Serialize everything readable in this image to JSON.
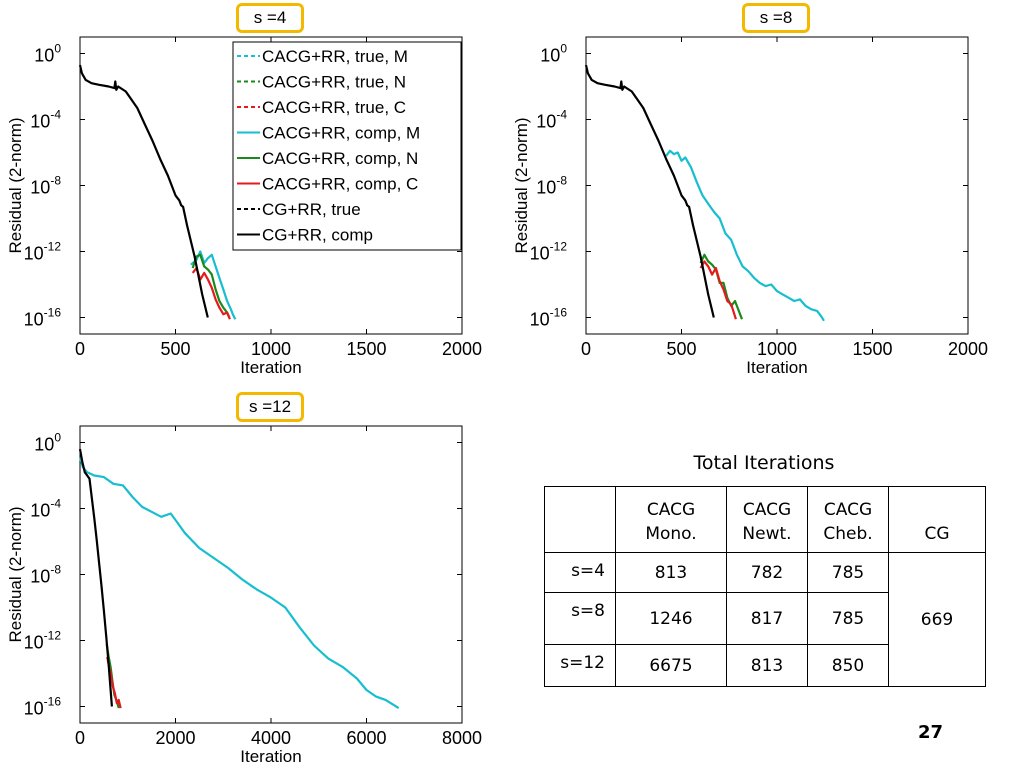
{
  "page_number": "27",
  "colors": {
    "badge_border": "#f5b800",
    "cyan": "#17becf",
    "green": "#1a8a1a",
    "red": "#e41a1c",
    "black": "#000000"
  },
  "chart_data": [
    {
      "type": "line",
      "badge": "s =4",
      "xlabel": "Iteration",
      "ylabel": "Residual (2-norm)",
      "xlim": [
        0,
        2000
      ],
      "xticks": [
        "0",
        "500",
        "1000",
        "1500",
        "2000"
      ],
      "ylim_log10": [
        -17,
        1
      ],
      "yticks": [
        {
          "base": "10",
          "exp": "0"
        },
        {
          "base": "10",
          "exp": "-4"
        },
        {
          "base": "10",
          "exp": "-8"
        },
        {
          "base": "10",
          "exp": "-12"
        },
        {
          "base": "10",
          "exp": "-16"
        }
      ],
      "legend": {
        "position": "top-right",
        "entries": [
          {
            "label": "CACG+RR, true, M",
            "color": "#17becf",
            "dash": true
          },
          {
            "label": "CACG+RR, true, N",
            "color": "#1a8a1a",
            "dash": true
          },
          {
            "label": "CACG+RR, true, C",
            "color": "#e41a1c",
            "dash": true
          },
          {
            "label": "CACG+RR, comp, M",
            "color": "#17becf",
            "dash": false
          },
          {
            "label": "CACG+RR, comp, N",
            "color": "#1a8a1a",
            "dash": false
          },
          {
            "label": "CACG+RR, comp, C",
            "color": "#e41a1c",
            "dash": false
          },
          {
            "label": "CG+RR, true",
            "color": "#000000",
            "dash": true
          },
          {
            "label": "CG+RR, comp",
            "color": "#000000",
            "dash": false
          }
        ]
      },
      "series": [
        {
          "color": "#17becf",
          "x": [
            580,
            610,
            630,
            650,
            670,
            690,
            710,
            730,
            750,
            770,
            790,
            800,
            813
          ],
          "y": [
            -12.8,
            -12.5,
            -12.0,
            -12.7,
            -12.4,
            -12.2,
            -12.9,
            -13.6,
            -14.3,
            -15.0,
            -15.5,
            -15.8,
            -16.1
          ]
        },
        {
          "color": "#1a8a1a",
          "x": [
            590,
            610,
            630,
            650,
            670,
            690,
            710,
            730,
            750,
            770,
            782
          ],
          "y": [
            -13.0,
            -12.3,
            -12.2,
            -12.9,
            -13.1,
            -13.4,
            -14.3,
            -15.0,
            -15.4,
            -15.7,
            -16.0
          ]
        },
        {
          "color": "#e41a1c",
          "x": [
            590,
            610,
            630,
            650,
            670,
            690,
            710,
            730,
            750,
            770,
            785
          ],
          "y": [
            -13.3,
            -13.0,
            -13.7,
            -13.3,
            -13.7,
            -14.2,
            -14.9,
            -15.4,
            -15.8,
            -15.7,
            -16.1
          ]
        },
        {
          "color": "#000000",
          "x": [
            0,
            10,
            30,
            60,
            100,
            150,
            180,
            185,
            190,
            200,
            240,
            300,
            340,
            380,
            420,
            460,
            500,
            520,
            530,
            540,
            560,
            600,
            640,
            669
          ],
          "y": [
            -0.7,
            -1.2,
            -1.6,
            -1.8,
            -1.9,
            -2.0,
            -2.1,
            -1.7,
            -2.2,
            -2.0,
            -2.3,
            -3.3,
            -4.3,
            -5.3,
            -6.4,
            -7.4,
            -8.6,
            -8.9,
            -9.2,
            -9.3,
            -10.4,
            -12.3,
            -14.6,
            -16.0
          ]
        }
      ]
    },
    {
      "type": "line",
      "badge": "s =8",
      "xlabel": "Iteration",
      "ylabel": "Residual (2-norm)",
      "xlim": [
        0,
        2000
      ],
      "xticks": [
        "0",
        "500",
        "1000",
        "1500",
        "2000"
      ],
      "ylim_log10": [
        -17,
        1
      ],
      "yticks": [
        {
          "base": "10",
          "exp": "0"
        },
        {
          "base": "10",
          "exp": "-4"
        },
        {
          "base": "10",
          "exp": "-8"
        },
        {
          "base": "10",
          "exp": "-12"
        },
        {
          "base": "10",
          "exp": "-16"
        }
      ],
      "series": [
        {
          "color": "#17becf",
          "x": [
            420,
            440,
            460,
            480,
            500,
            520,
            550,
            580,
            610,
            640,
            670,
            700,
            730,
            760,
            790,
            820,
            850,
            880,
            910,
            940,
            970,
            1000,
            1030,
            1060,
            1090,
            1120,
            1150,
            1180,
            1210,
            1230,
            1246
          ],
          "y": [
            -6.2,
            -5.9,
            -6.1,
            -6.0,
            -6.5,
            -6.3,
            -6.9,
            -7.8,
            -8.6,
            -9.1,
            -9.6,
            -10.0,
            -10.9,
            -11.3,
            -12.2,
            -12.9,
            -13.2,
            -13.6,
            -13.9,
            -14.1,
            -14.0,
            -14.4,
            -14.6,
            -14.8,
            -15.0,
            -14.9,
            -15.3,
            -15.5,
            -15.6,
            -15.9,
            -16.2
          ]
        },
        {
          "color": "#1a8a1a",
          "x": [
            600,
            620,
            640,
            660,
            680,
            700,
            720,
            740,
            760,
            780,
            800,
            817
          ],
          "y": [
            -12.7,
            -12.2,
            -12.6,
            -12.8,
            -13.1,
            -13.9,
            -13.9,
            -14.8,
            -15.3,
            -15.0,
            -15.6,
            -16.1
          ]
        },
        {
          "color": "#e41a1c",
          "x": [
            600,
            620,
            640,
            660,
            680,
            700,
            720,
            740,
            760,
            785
          ],
          "y": [
            -13.0,
            -12.6,
            -12.9,
            -13.4,
            -13.0,
            -13.8,
            -14.3,
            -15.0,
            -15.2,
            -16.1
          ]
        },
        {
          "color": "#000000",
          "x": [
            0,
            10,
            30,
            60,
            100,
            150,
            180,
            185,
            190,
            200,
            240,
            300,
            340,
            380,
            420,
            460,
            500,
            520,
            530,
            540,
            560,
            600,
            640,
            669
          ],
          "y": [
            -0.7,
            -1.2,
            -1.6,
            -1.8,
            -1.9,
            -2.0,
            -2.1,
            -1.7,
            -2.2,
            -2.0,
            -2.3,
            -3.3,
            -4.3,
            -5.3,
            -6.4,
            -7.4,
            -8.6,
            -8.9,
            -9.2,
            -9.3,
            -10.4,
            -12.3,
            -14.6,
            -16.0
          ]
        }
      ]
    },
    {
      "type": "line",
      "badge": "s =12",
      "xlabel": "Iteration",
      "ylabel": "Residual (2-norm)",
      "xlim": [
        0,
        8000
      ],
      "xticks": [
        "0",
        "2000",
        "4000",
        "6000",
        "8000"
      ],
      "ylim_log10": [
        -17,
        1
      ],
      "yticks": [
        {
          "base": "10",
          "exp": "0"
        },
        {
          "base": "10",
          "exp": "-4"
        },
        {
          "base": "10",
          "exp": "-8"
        },
        {
          "base": "10",
          "exp": "-12"
        },
        {
          "base": "10",
          "exp": "-16"
        }
      ],
      "series": [
        {
          "color": "#17becf",
          "x": [
            0,
            60,
            150,
            300,
            500,
            700,
            900,
            1100,
            1300,
            1500,
            1700,
            1900,
            2000,
            2200,
            2500,
            2800,
            3100,
            3400,
            3700,
            4000,
            4300,
            4600,
            4900,
            5200,
            5500,
            5800,
            6000,
            6200,
            6400,
            6675
          ],
          "y": [
            -0.9,
            -1.5,
            -1.8,
            -2.0,
            -2.1,
            -2.5,
            -2.6,
            -3.3,
            -3.9,
            -4.2,
            -4.5,
            -4.3,
            -4.7,
            -5.5,
            -6.4,
            -7.0,
            -7.6,
            -8.3,
            -8.9,
            -9.4,
            -10.0,
            -11.2,
            -12.3,
            -13.1,
            -13.6,
            -14.3,
            -15.0,
            -15.4,
            -15.6,
            -16.1
          ]
        },
        {
          "color": "#1a8a1a",
          "x": [
            560,
            600,
            640,
            680,
            720,
            760,
            813
          ],
          "y": [
            -12.2,
            -13.0,
            -13.6,
            -14.5,
            -15.3,
            -15.6,
            -16.1
          ]
        },
        {
          "color": "#e41a1c",
          "x": [
            570,
            610,
            650,
            690,
            730,
            770,
            810,
            850
          ],
          "y": [
            -13.0,
            -13.6,
            -14.1,
            -14.8,
            -15.2,
            -15.8,
            -15.6,
            -16.1
          ]
        },
        {
          "color": "#000000",
          "x": [
            0,
            50,
            100,
            150,
            200,
            250,
            300,
            350,
            400,
            450,
            500,
            550,
            600,
            669
          ],
          "y": [
            -0.4,
            -1.2,
            -1.8,
            -2.0,
            -2.2,
            -3.4,
            -4.6,
            -5.9,
            -7.3,
            -8.7,
            -10.2,
            -11.8,
            -13.5,
            -16.0
          ]
        }
      ]
    }
  ],
  "table": {
    "title": "Total Iterations",
    "headers": [
      {
        "line1": "CACG",
        "line2": "Mono."
      },
      {
        "line1": "CACG",
        "line2": "Newt."
      },
      {
        "line1": "CACG",
        "line2": "Cheb."
      },
      {
        "line1": "",
        "line2": "CG"
      }
    ],
    "rows": [
      {
        "label": "s=4",
        "values": [
          "813",
          "782",
          "785"
        ]
      },
      {
        "label": "s=8",
        "values": [
          "1246",
          "817",
          "785"
        ]
      },
      {
        "label": "s=12",
        "values": [
          "6675",
          "813",
          "850"
        ]
      }
    ],
    "cg_value": "669"
  }
}
